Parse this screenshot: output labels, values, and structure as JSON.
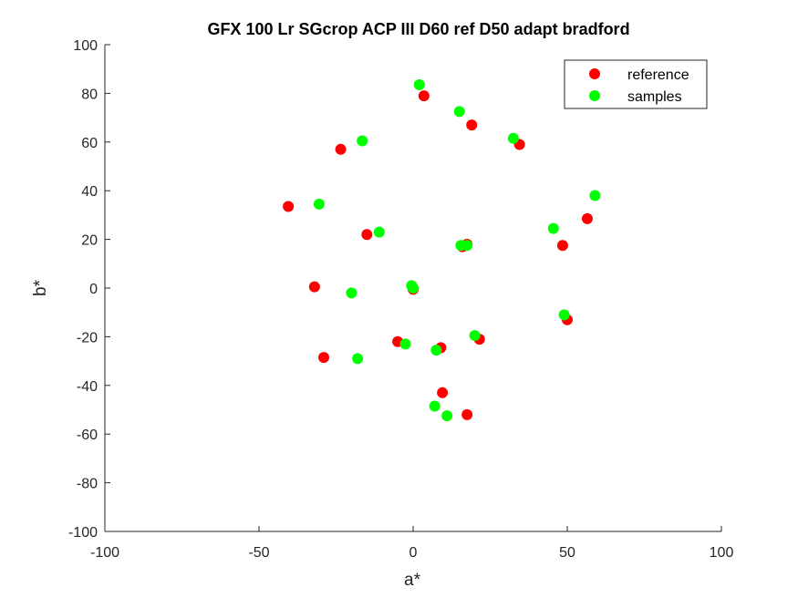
{
  "chart_data": {
    "type": "scatter",
    "title": "GFX 100 Lr SGcrop ACP III D60 ref D50 adapt bradford",
    "xlabel": "a*",
    "ylabel": "b*",
    "xlim": [
      -100,
      100
    ],
    "ylim": [
      -100,
      100
    ],
    "xticks": [
      -100,
      -50,
      0,
      50,
      100
    ],
    "yticks": [
      -100,
      -80,
      -60,
      -40,
      -20,
      0,
      20,
      40,
      60,
      80,
      100
    ],
    "grid": false,
    "legend_position": "top-right",
    "series": [
      {
        "name": "reference",
        "color": "#ff0000",
        "points": [
          [
            3.5,
            79
          ],
          [
            19,
            67
          ],
          [
            34.5,
            59
          ],
          [
            -23.5,
            57
          ],
          [
            -40.5,
            33.5
          ],
          [
            -15,
            22
          ],
          [
            56.5,
            28.5
          ],
          [
            48.5,
            17.5
          ],
          [
            16,
            17
          ],
          [
            17.5,
            18
          ],
          [
            -32,
            0.5
          ],
          [
            0,
            -0.5
          ],
          [
            50,
            -13
          ],
          [
            -5,
            -22
          ],
          [
            9,
            -24.5
          ],
          [
            21.5,
            -21
          ],
          [
            -29,
            -28.5
          ],
          [
            9.5,
            -43
          ],
          [
            17.5,
            -52
          ]
        ]
      },
      {
        "name": "samples",
        "color": "#00ff00",
        "points": [
          [
            2,
            83.5
          ],
          [
            15,
            72.5
          ],
          [
            32.5,
            61.5
          ],
          [
            -16.5,
            60.5
          ],
          [
            -30.5,
            34.5
          ],
          [
            -11,
            23
          ],
          [
            45.5,
            24.5
          ],
          [
            59,
            38
          ],
          [
            15.5,
            17.5
          ],
          [
            17.5,
            17.5
          ],
          [
            -20,
            -2
          ],
          [
            -0.5,
            1
          ],
          [
            0,
            0
          ],
          [
            49,
            -11
          ],
          [
            -2.5,
            -23
          ],
          [
            7.5,
            -25.5
          ],
          [
            20,
            -19.5
          ],
          [
            -18,
            -29
          ],
          [
            7,
            -48.5
          ],
          [
            11,
            -52.5
          ]
        ]
      }
    ]
  }
}
